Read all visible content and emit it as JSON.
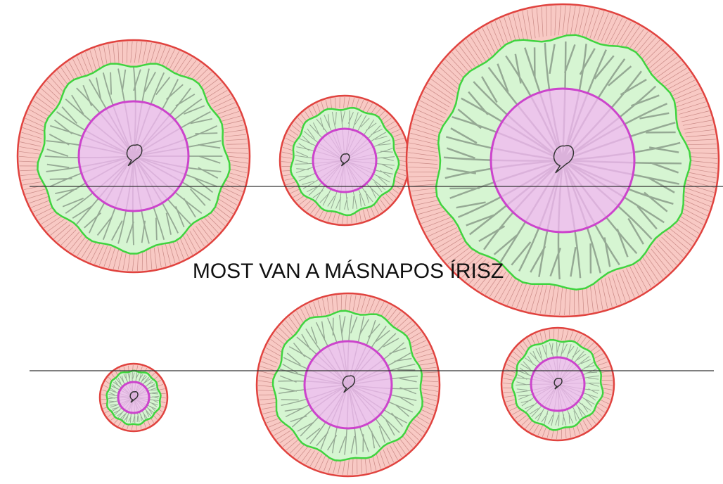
{
  "caption": "MOST VAN A MÁSNAPOS ÍRISZ"
}
